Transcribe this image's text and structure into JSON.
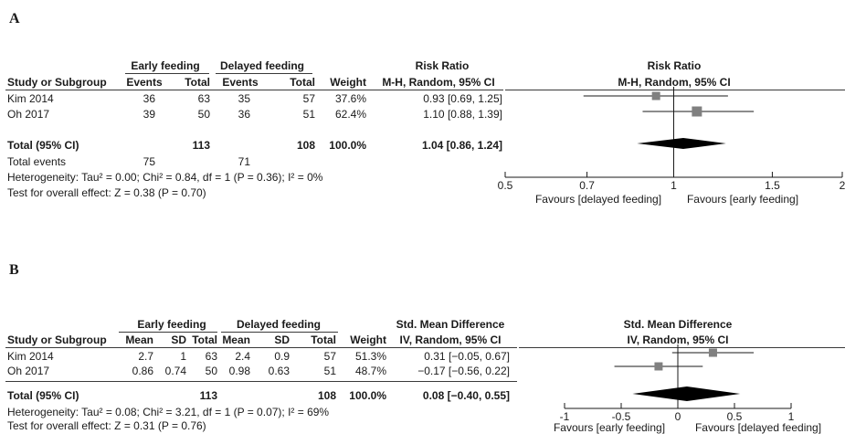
{
  "panels": {
    "a": {
      "letter": "A",
      "headers": {
        "study": "Study or Subgroup",
        "group1": "Early feeding",
        "group2": "Delayed feeding",
        "events1": "Events",
        "total1": "Total",
        "events2": "Events",
        "total2": "Total",
        "weight": "Weight",
        "effect_title": "Risk Ratio",
        "effect_method": "M-H, Random, 95% CI",
        "plot_title": "Risk Ratio",
        "plot_method": "M-H, Random, 95% CI"
      },
      "rows": [
        {
          "study": "Kim 2014",
          "events1": "36",
          "total1": "63",
          "events2": "35",
          "total2": "57",
          "weight": "37.6%",
          "ci": "0.93 [0.69, 1.25]"
        },
        {
          "study": "Oh 2017",
          "events1": "39",
          "total1": "50",
          "events2": "36",
          "total2": "51",
          "weight": "62.4%",
          "ci": "1.10 [0.88, 1.39]"
        }
      ],
      "total": {
        "label": "Total (95% CI)",
        "total1": "113",
        "total2": "108",
        "weight": "100.0%",
        "ci": "1.04 [0.86, 1.24]"
      },
      "total_events": {
        "label": "Total events",
        "events1": "75",
        "events2": "71"
      },
      "heterogeneity": "Heterogeneity: Tau² = 0.00; Chi² = 0.84, df = 1 (P = 0.36); I² = 0%",
      "overall": "Test for overall effect: Z = 0.38 (P = 0.70)",
      "favours_left": "Favours [delayed feeding]",
      "favours_right": "Favours [early feeding]"
    },
    "b": {
      "letter": "B",
      "headers": {
        "study": "Study or Subgroup",
        "group1": "Early feeding",
        "group2": "Delayed feeding",
        "mean1": "Mean",
        "sd1": "SD",
        "total1": "Total",
        "mean2": "Mean",
        "sd2": "SD",
        "total2": "Total",
        "weight": "Weight",
        "effect_title": "Std. Mean Difference",
        "effect_method": "IV, Random, 95% CI",
        "plot_title": "Std. Mean Difference",
        "plot_method": "IV, Random, 95% CI"
      },
      "rows": [
        {
          "study": "Kim 2014",
          "mean1": "2.7",
          "sd1": "1",
          "total1": "63",
          "mean2": "2.4",
          "sd2": "0.9",
          "total2": "57",
          "weight": "51.3%",
          "ci": "0.31 [−0.05, 0.67]"
        },
        {
          "study": "Oh 2017",
          "mean1": "0.86",
          "sd1": "0.74",
          "total1": "50",
          "mean2": "0.98",
          "sd2": "0.63",
          "total2": "51",
          "weight": "48.7%",
          "ci": "−0.17 [−0.56, 0.22]"
        }
      ],
      "total": {
        "label": "Total (95% CI)",
        "total1": "113",
        "total2": "108",
        "weight": "100.0%",
        "ci": "0.08 [−0.40, 0.55]"
      },
      "heterogeneity": "Heterogeneity: Tau² = 0.08; Chi² = 3.21, df = 1 (P = 0.07); I² = 69%",
      "overall": "Test for overall effect: Z = 0.31 (P = 0.76)",
      "favours_left": "Favours [early feeding]",
      "favours_right": "Favours [delayed feeding]"
    }
  },
  "chart_data": [
    {
      "type": "forest",
      "scale": "log",
      "null_value": 1,
      "xlim": [
        0.5,
        2
      ],
      "ticks": [
        0.5,
        0.7,
        1,
        1.5,
        2
      ],
      "tick_labels": [
        "0.5",
        "0.7",
        "1",
        "1.5",
        "2"
      ],
      "studies": [
        {
          "name": "Kim 2014",
          "estimate": 0.93,
          "lower": 0.69,
          "upper": 1.25,
          "weight": 37.6
        },
        {
          "name": "Oh 2017",
          "estimate": 1.1,
          "lower": 0.88,
          "upper": 1.39,
          "weight": 62.4
        }
      ],
      "pooled": {
        "estimate": 1.04,
        "lower": 0.86,
        "upper": 1.24
      },
      "colors": {
        "marker": "#808080",
        "diamond": "#000000",
        "line": "#1a1a1a"
      }
    },
    {
      "type": "forest",
      "scale": "linear",
      "null_value": 0,
      "xlim": [
        -1,
        1
      ],
      "ticks": [
        -1,
        -0.5,
        0,
        0.5,
        1
      ],
      "tick_labels": [
        "-1",
        "-0.5",
        "0",
        "0.5",
        "1"
      ],
      "studies": [
        {
          "name": "Kim 2014",
          "estimate": 0.31,
          "lower": -0.05,
          "upper": 0.67,
          "weight": 51.3
        },
        {
          "name": "Oh 2017",
          "estimate": -0.17,
          "lower": -0.56,
          "upper": 0.22,
          "weight": 48.7
        }
      ],
      "pooled": {
        "estimate": 0.08,
        "lower": -0.4,
        "upper": 0.55
      },
      "colors": {
        "marker": "#808080",
        "diamond": "#000000",
        "line": "#1a1a1a"
      }
    }
  ]
}
